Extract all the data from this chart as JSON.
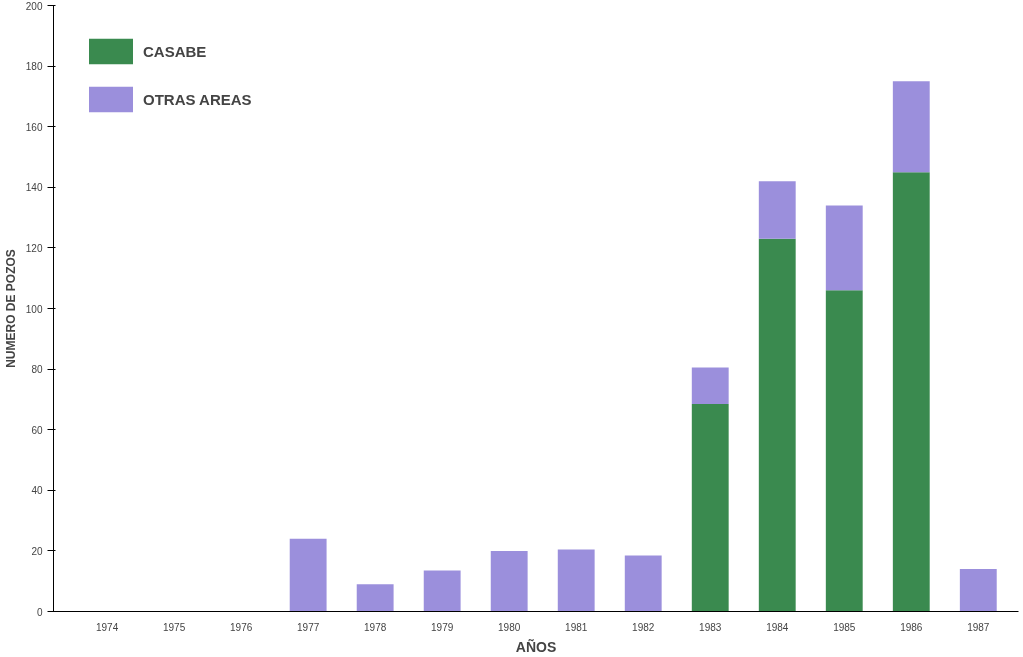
{
  "chart_data": {
    "type": "bar",
    "stacked": true,
    "xlabel": "AÑOS",
    "ylabel": "NUMERO DE POZOS",
    "categories": [
      "1974",
      "1975",
      "1976",
      "1977",
      "1978",
      "1979",
      "1980",
      "1981",
      "1982",
      "1983",
      "1984",
      "1985",
      "1986",
      "1987"
    ],
    "series": [
      {
        "name": "CASABE",
        "color": "#3a8a4f",
        "values": [
          0,
          0,
          0,
          0,
          0,
          0,
          0,
          0,
          0,
          68.5,
          123,
          106,
          145,
          0
        ]
      },
      {
        "name": "OTRAS AREAS",
        "color": "#9b8fdc",
        "values": [
          0,
          0,
          0,
          24,
          9,
          13.5,
          20,
          20.5,
          18.5,
          12,
          19,
          28,
          30,
          14
        ]
      }
    ],
    "ylim": [
      0,
      200
    ],
    "yticks": [
      0,
      20,
      40,
      60,
      80,
      100,
      120,
      140,
      160,
      180,
      200
    ],
    "grid": false,
    "legend": "top left"
  }
}
